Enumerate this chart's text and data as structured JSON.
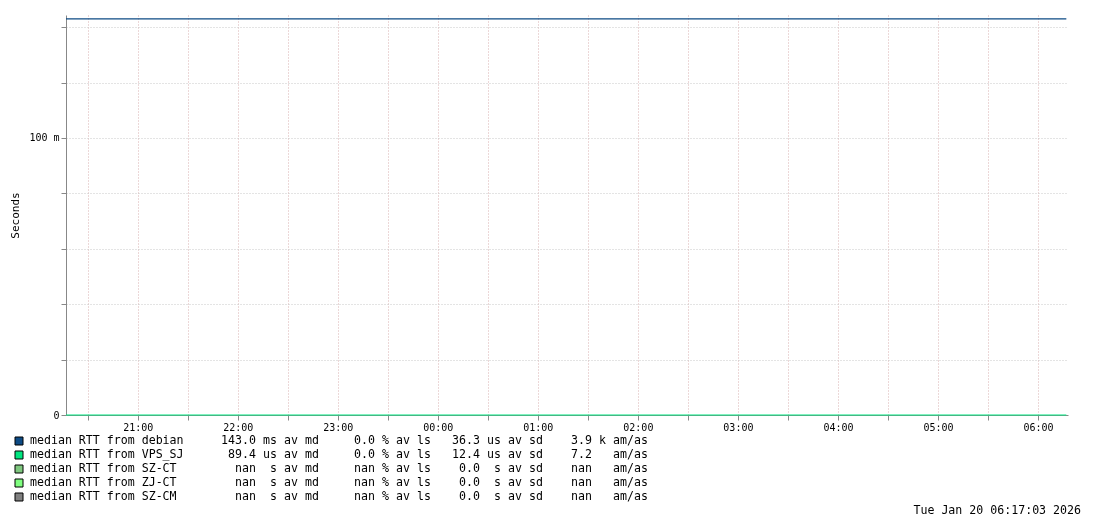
{
  "chart_data": {
    "type": "line",
    "ylabel": "Seconds",
    "xlim": [
      "2026-01-19T20:17",
      "2026-01-20T06:18"
    ],
    "ylim": [
      0,
      144.4
    ],
    "xticks": [
      {
        "value": "2026-01-19T20:30",
        "label": null
      },
      {
        "value": "2026-01-19T21:00",
        "label": "21:00"
      },
      {
        "value": "2026-01-19T21:30",
        "label": null
      },
      {
        "value": "2026-01-19T22:00",
        "label": "22:00"
      },
      {
        "value": "2026-01-19T22:30",
        "label": null
      },
      {
        "value": "2026-01-19T23:00",
        "label": "23:00"
      },
      {
        "value": "2026-01-19T23:30",
        "label": null
      },
      {
        "value": "2026-01-20T00:00",
        "label": "00:00"
      },
      {
        "value": "2026-01-20T00:30",
        "label": null
      },
      {
        "value": "2026-01-20T01:00",
        "label": "01:00"
      },
      {
        "value": "2026-01-20T01:30",
        "label": null
      },
      {
        "value": "2026-01-20T02:00",
        "label": "02:00"
      },
      {
        "value": "2026-01-20T02:30",
        "label": null
      },
      {
        "value": "2026-01-20T03:00",
        "label": "03:00"
      },
      {
        "value": "2026-01-20T03:30",
        "label": null
      },
      {
        "value": "2026-01-20T04:00",
        "label": "04:00"
      },
      {
        "value": "2026-01-20T04:30",
        "label": null
      },
      {
        "value": "2026-01-20T05:00",
        "label": "05:00"
      },
      {
        "value": "2026-01-20T05:30",
        "label": null
      },
      {
        "value": "2026-01-20T06:00",
        "label": "06:00"
      }
    ],
    "yticks": [
      {
        "value": 0,
        "label": "0"
      },
      {
        "value": 20,
        "label": null
      },
      {
        "value": 40,
        "label": null
      },
      {
        "value": 60,
        "label": null
      },
      {
        "value": 80,
        "label": null
      },
      {
        "value": 100,
        "label": "100 m"
      },
      {
        "value": 120,
        "label": null
      },
      {
        "value": 140,
        "label": null
      }
    ],
    "series": [
      {
        "name": "median RTT from debian",
        "color": "#0d4a84",
        "x": [
          "2026-01-19T20:17",
          "2026-01-20T06:17"
        ],
        "values": [
          143,
          143
        ]
      },
      {
        "name": "median RTT from VPS_SJ",
        "color": "#00e680",
        "x": [
          "2026-01-19T20:17",
          "2026-01-20T06:17"
        ],
        "values": [
          0,
          0
        ]
      },
      {
        "name": "median RTT from SZ-CT",
        "color": "#80c880"
      },
      {
        "name": "median RTT from ZJ-CT",
        "color": "#80ff80"
      },
      {
        "name": "median RTT from SZ-CM",
        "color": "#808080"
      }
    ],
    "annotations": [
      "143.0 ms av md     0.0 % av ls   36.3 us av sd    3.9 k am/as",
      " 89.4 us av md     0.0 % av ls   12.4 us av sd    7.2   am/as",
      "  nan  s av md     nan % av ls    0.0  s av sd    nan   am/as",
      "  nan  s av md     nan % av ls    0.0  s av sd    nan   am/as",
      "  nan  s av md     nan % av ls    0.0  s av sd    nan   am/as",
      "Tue Jan 20 06:17:03 2026"
    ],
    "grid": true,
    "legend": "bottom left",
    "marker": "none",
    "line_style": "solid"
  }
}
